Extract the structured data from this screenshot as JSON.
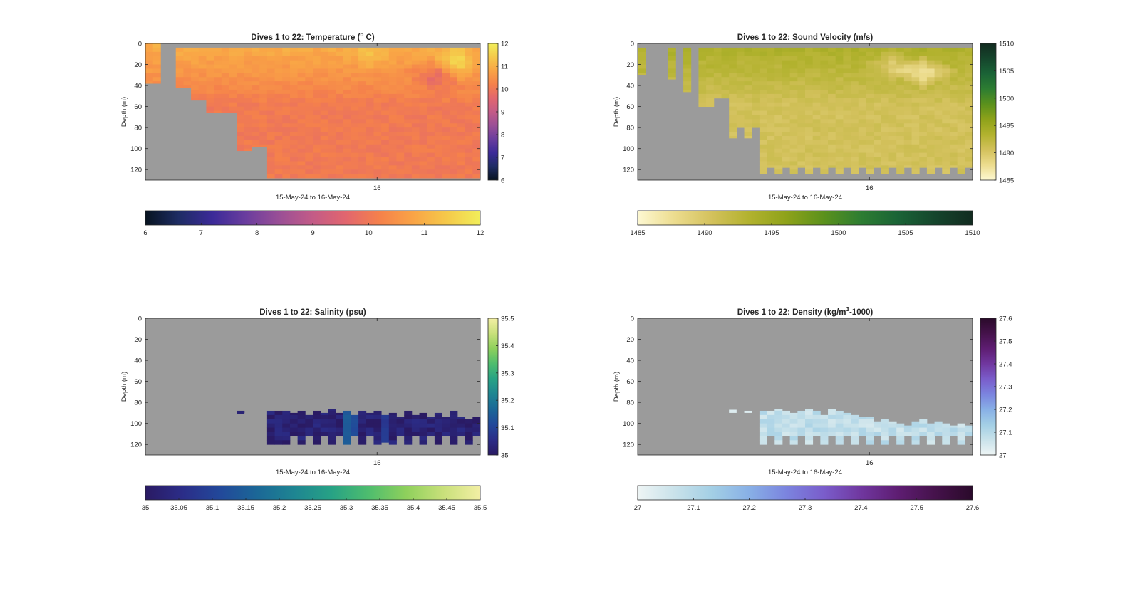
{
  "figure_background": "#ffffff",
  "missing_color": "#9b9b9b",
  "chart_data": [
    {
      "type": "heatmap",
      "title": "Dives 1 to 22: Temperature (°C)",
      "title_parts": {
        "before": "Dives 1 to 22: Temperature (",
        "sup": "o",
        "after": " C)"
      },
      "ylabel": "Depth (m)",
      "xlabel": "15-May-24 to 16-May-24",
      "xtick_labels": [
        "16"
      ],
      "yticks": [
        0,
        20,
        40,
        60,
        80,
        100,
        120
      ],
      "ylim": [
        0,
        130
      ],
      "clim": [
        6,
        12
      ],
      "colormap": [
        "#07131f",
        "#1e2c64",
        "#3b2a98",
        "#6a3d9e",
        "#9a4f96",
        "#c35b87",
        "#e2666e",
        "#f5814b",
        "#f9a446",
        "#f5c94a",
        "#f1ee5a"
      ],
      "side_colorbar_ticks": [
        "6",
        "7",
        "8",
        "9",
        "10",
        "11",
        "12"
      ],
      "bottom_colorbar_ticks": [
        "6",
        "7",
        "8",
        "9",
        "10",
        "11",
        "12"
      ],
      "n_columns": 44,
      "dives": 22,
      "top_missing_depth": [
        0,
        0,
        0,
        0,
        4,
        4,
        4,
        4,
        4,
        4,
        4,
        4,
        4,
        4,
        4,
        4,
        4,
        4,
        4,
        4,
        4,
        4,
        4,
        4,
        4,
        4,
        4,
        4,
        4,
        4,
        4,
        4,
        4,
        4,
        4,
        4,
        4,
        4,
        4,
        4,
        4,
        4,
        4,
        4
      ],
      "valid_to_depth": [
        38,
        38,
        0,
        0,
        42,
        42,
        54,
        54,
        66,
        66,
        66,
        66,
        102,
        102,
        98,
        98,
        128,
        128,
        128,
        128,
        128,
        128,
        128,
        128,
        128,
        128,
        128,
        128,
        128,
        128,
        128,
        128,
        128,
        128,
        128,
        128,
        128,
        128,
        128,
        128,
        128,
        128,
        128,
        128
      ],
      "surface_values": {
        "top": 10.95,
        "bottom": 10.05
      },
      "warm_patches": [
        [
          40,
          12,
          0.35
        ],
        [
          41,
          20,
          0.3
        ],
        [
          29,
          8,
          0.25
        ]
      ],
      "cool_patches": [
        [
          37,
          25,
          0.45
        ],
        [
          38,
          35,
          0.4
        ]
      ]
    },
    {
      "type": "heatmap",
      "title": "Dives 1 to 22: Sound Velocity (m/s)",
      "title_parts": {
        "before": "Dives 1 to 22: Sound Velocity (m/s)",
        "sup": "",
        "after": ""
      },
      "ylabel": "Depth (m)",
      "xlabel": "15-May-24 to 16-May-24",
      "xtick_labels": [
        "16"
      ],
      "yticks": [
        0,
        20,
        40,
        60,
        80,
        100,
        120
      ],
      "ylim": [
        0,
        130
      ],
      "clim": [
        1485,
        1510
      ],
      "colormap": [
        "#fdf8d2",
        "#ecdc8e",
        "#d3c15c",
        "#b2b22e",
        "#8ea21a",
        "#5b911c",
        "#2d7d32",
        "#1a6336",
        "#15452c",
        "#122b20"
      ],
      "side_colorbar_ticks": [
        "1485",
        "1490",
        "1495",
        "1500",
        "1505",
        "1510"
      ],
      "bottom_colorbar_ticks": [
        "1485",
        "1490",
        "1495",
        "1500",
        "1505",
        "1510"
      ],
      "n_columns": 44,
      "dives": 22,
      "top_missing_depth": [
        4,
        4,
        4,
        4,
        4,
        4,
        4,
        4,
        4,
        4,
        4,
        4,
        4,
        4,
        4,
        4,
        4,
        4,
        4,
        4,
        4,
        4,
        4,
        4,
        4,
        4,
        4,
        4,
        4,
        4,
        4,
        4,
        4,
        4,
        4,
        4,
        4,
        4,
        4,
        4,
        4,
        4,
        4,
        4
      ],
      "valid_to_depth": [
        30,
        0,
        0,
        0,
        34,
        0,
        46,
        0,
        60,
        60,
        52,
        52,
        90,
        80,
        90,
        80,
        124,
        118,
        124,
        118,
        124,
        118,
        124,
        118,
        124,
        118,
        124,
        118,
        124,
        118,
        124,
        118,
        124,
        118,
        124,
        118,
        124,
        118,
        124,
        118,
        124,
        118,
        124,
        118
      ],
      "surface_values": {
        "top": 1493.8,
        "bottom": 1490.6
      },
      "warm_patches": [
        [
          37,
          20,
          0.0
        ]
      ],
      "cool_patches": [
        [
          37,
          25,
          1.2
        ],
        [
          33,
          18,
          0.7
        ]
      ]
    },
    {
      "type": "heatmap",
      "title": "Dives 1 to 22: Salinity (psu)",
      "title_parts": {
        "before": "Dives 1 to 22: Salinity (psu)",
        "sup": "",
        "after": ""
      },
      "ylabel": "Depth (m)",
      "xlabel": "15-May-24 to 16-May-24",
      "xtick_labels": [
        "16"
      ],
      "yticks": [
        0,
        20,
        40,
        60,
        80,
        100,
        120
      ],
      "ylim": [
        0,
        130
      ],
      "clim": [
        35,
        35.5
      ],
      "colormap": [
        "#2a1a63",
        "#2b2d88",
        "#22489a",
        "#1b6797",
        "#1e8592",
        "#27a285",
        "#4ebd6e",
        "#8ed05c",
        "#c8e07a",
        "#f3efa4"
      ],
      "side_colorbar_ticks": [
        "35",
        "35.1",
        "35.2",
        "35.3",
        "35.4",
        "35.5"
      ],
      "bottom_colorbar_ticks": [
        "35",
        "35.05",
        "35.1",
        "35.15",
        "35.2",
        "35.25",
        "35.3",
        "35.35",
        "35.4",
        "35.45",
        "35.5"
      ],
      "n_columns": 44,
      "dives": 22,
      "stripe_tops": [
        130,
        130,
        130,
        130,
        130,
        130,
        130,
        130,
        130,
        130,
        130,
        130,
        88,
        130,
        130,
        130,
        88,
        88,
        88,
        90,
        88,
        92,
        88,
        90,
        86,
        90,
        88,
        92,
        88,
        90,
        88,
        92,
        90,
        94,
        88,
        92,
        90,
        94,
        90,
        94,
        88,
        94,
        96,
        94
      ],
      "stripe_bottoms": [
        130,
        130,
        130,
        130,
        130,
        130,
        130,
        130,
        130,
        130,
        130,
        130,
        90,
        130,
        130,
        130,
        120,
        120,
        120,
        112,
        120,
        112,
        120,
        112,
        120,
        112,
        120,
        112,
        120,
        112,
        120,
        118,
        120,
        112,
        120,
        112,
        120,
        112,
        120,
        112,
        120,
        112,
        120,
        112
      ],
      "base_value": 35.02,
      "bright_columns": [
        [
          26,
          35.14
        ],
        [
          27,
          35.12
        ],
        [
          31,
          35.08
        ]
      ]
    },
    {
      "type": "heatmap",
      "title": "Dives 1 to 22: Density (kg/m³-1000)",
      "title_parts": {
        "before": "Dives 1 to 22: Density (kg/m",
        "sup": "3",
        "after": "-1000)"
      },
      "ylabel": "Depth (m)",
      "xlabel": "15-May-24 to 16-May-24",
      "xtick_labels": [
        "16"
      ],
      "yticks": [
        0,
        20,
        40,
        60,
        80,
        100,
        120
      ],
      "ylim": [
        0,
        130
      ],
      "clim": [
        27,
        27.6
      ],
      "colormap": [
        "#eef5f5",
        "#c9e2ea",
        "#a3cfe5",
        "#88b0e6",
        "#7b84df",
        "#7a5dcb",
        "#70379f",
        "#5e1d72",
        "#45124b",
        "#2a0a2a"
      ],
      "side_colorbar_ticks": [
        "27",
        "27.1",
        "27.2",
        "27.3",
        "27.4",
        "27.5",
        "27.6"
      ],
      "bottom_colorbar_ticks": [
        "27",
        "27.1",
        "27.2",
        "27.3",
        "27.4",
        "27.5",
        "27.6"
      ],
      "n_columns": 44,
      "dives": 22,
      "stripe_tops": [
        130,
        130,
        130,
        130,
        130,
        130,
        130,
        130,
        130,
        130,
        130,
        130,
        130,
        130,
        130,
        130,
        88,
        88,
        86,
        88,
        90,
        88,
        86,
        88,
        92,
        86,
        88,
        90,
        92,
        94,
        94,
        98,
        96,
        98,
        100,
        102,
        98,
        96,
        100,
        98,
        100,
        102,
        100,
        102
      ],
      "stripe_bottoms": [
        130,
        130,
        130,
        130,
        130,
        130,
        130,
        130,
        130,
        130,
        130,
        130,
        130,
        130,
        130,
        130,
        120,
        112,
        120,
        112,
        120,
        112,
        120,
        112,
        120,
        112,
        120,
        112,
        120,
        112,
        120,
        112,
        120,
        112,
        120,
        112,
        120,
        112,
        120,
        112,
        120,
        112,
        120,
        112
      ],
      "base_value": 27.08,
      "bright_columns": [],
      "extra_blips": [
        [
          12,
          87,
          90
        ],
        [
          14,
          88,
          90
        ]
      ]
    }
  ]
}
